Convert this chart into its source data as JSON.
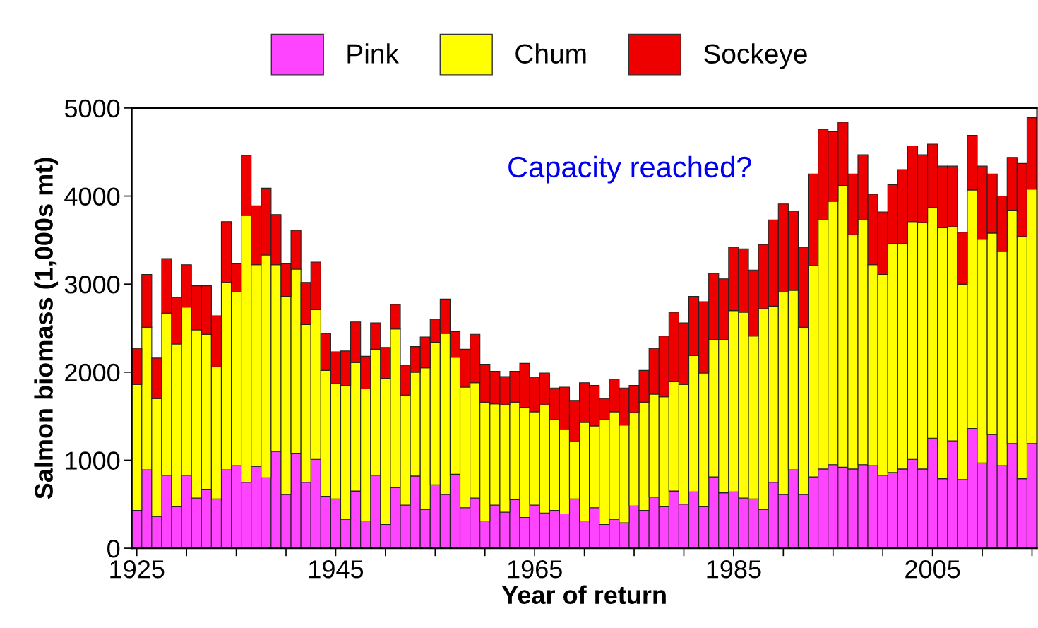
{
  "chart_data": {
    "type": "bar",
    "stacked": true,
    "xlabel": "Year of return",
    "ylabel": "Salmon biomass (1,000s mt)",
    "x": [
      1925,
      1926,
      1927,
      1928,
      1929,
      1930,
      1931,
      1932,
      1933,
      1934,
      1935,
      1936,
      1937,
      1938,
      1939,
      1940,
      1941,
      1942,
      1943,
      1944,
      1945,
      1946,
      1947,
      1948,
      1949,
      1950,
      1951,
      1952,
      1953,
      1954,
      1955,
      1956,
      1957,
      1958,
      1959,
      1960,
      1961,
      1962,
      1963,
      1964,
      1965,
      1966,
      1967,
      1968,
      1969,
      1970,
      1971,
      1972,
      1973,
      1974,
      1975,
      1976,
      1977,
      1978,
      1979,
      1980,
      1981,
      1982,
      1983,
      1984,
      1985,
      1986,
      1987,
      1988,
      1989,
      1990,
      1991,
      1992,
      1993,
      1994,
      1995,
      1996,
      1997,
      1998,
      1999,
      2000,
      2001,
      2002,
      2003,
      2004,
      2005,
      2006,
      2007,
      2008,
      2009,
      2010,
      2011,
      2012,
      2013,
      2014,
      2015
    ],
    "series": [
      {
        "name": "Pink",
        "color": "#ff44ff",
        "values": [
          430,
          890,
          360,
          830,
          470,
          830,
          570,
          670,
          560,
          890,
          940,
          750,
          930,
          800,
          1100,
          610,
          1080,
          750,
          1010,
          590,
          560,
          330,
          650,
          310,
          830,
          270,
          690,
          490,
          820,
          440,
          720,
          610,
          840,
          460,
          570,
          310,
          490,
          410,
          550,
          350,
          490,
          400,
          430,
          390,
          560,
          310,
          460,
          270,
          330,
          290,
          480,
          430,
          580,
          470,
          650,
          500,
          640,
          470,
          810,
          630,
          640,
          570,
          560,
          440,
          750,
          610,
          890,
          610,
          810,
          900,
          950,
          920,
          900,
          950,
          940,
          830,
          860,
          900,
          1010,
          900,
          1250,
          790,
          1220,
          780,
          1360,
          970,
          1290,
          940,
          1190,
          790,
          1190
        ]
      },
      {
        "name": "Chum",
        "color": "#ffff00",
        "values": [
          1430,
          1620,
          1340,
          1840,
          1850,
          1910,
          1910,
          1760,
          1500,
          2130,
          1970,
          3030,
          2290,
          2530,
          2120,
          2250,
          2090,
          1790,
          1700,
          1430,
          1310,
          1520,
          1460,
          1500,
          1430,
          1660,
          1800,
          1250,
          1180,
          1610,
          1620,
          1830,
          1330,
          1370,
          1310,
          1350,
          1150,
          1220,
          1110,
          1250,
          1060,
          1230,
          1030,
          960,
          650,
          1120,
          930,
          1190,
          1220,
          1110,
          1060,
          1230,
          1170,
          1250,
          1240,
          1360,
          1550,
          1520,
          1560,
          1740,
          2060,
          2110,
          1850,
          2280,
          2000,
          2300,
          2040,
          1900,
          2400,
          2830,
          2990,
          3200,
          2660,
          2780,
          2280,
          2280,
          2600,
          2560,
          2700,
          2800,
          2620,
          2850,
          2430,
          2220,
          2710,
          2540,
          2290,
          2430,
          2650,
          2750,
          2890
        ]
      },
      {
        "name": "Sockeye",
        "color": "#ee0000",
        "values": [
          410,
          600,
          460,
          620,
          530,
          480,
          500,
          550,
          580,
          690,
          320,
          680,
          670,
          760,
          570,
          370,
          440,
          480,
          540,
          420,
          360,
          390,
          460,
          370,
          300,
          350,
          280,
          340,
          290,
          350,
          260,
          390,
          290,
          430,
          550,
          430,
          370,
          320,
          350,
          500,
          390,
          360,
          360,
          480,
          470,
          450,
          460,
          240,
          370,
          420,
          310,
          360,
          520,
          690,
          790,
          700,
          670,
          810,
          750,
          690,
          720,
          720,
          750,
          730,
          980,
          1000,
          900,
          910,
          1040,
          1030,
          790,
          720,
          690,
          740,
          800,
          710,
          670,
          840,
          860,
          770,
          720,
          700,
          690,
          590,
          620,
          830,
          670,
          630,
          600,
          830,
          810
        ]
      }
    ],
    "xlim": [
      1924.5,
      2015.5
    ],
    "xticks": [
      1925,
      {
        "value": 1930,
        "label": null
      },
      {
        "value": 1935,
        "label": null
      },
      {
        "value": 1940,
        "label": null
      },
      1945,
      {
        "value": 1950,
        "label": null
      },
      {
        "value": 1955,
        "label": null
      },
      {
        "value": 1960,
        "label": null
      },
      1965,
      {
        "value": 1970,
        "label": null
      },
      {
        "value": 1975,
        "label": null
      },
      {
        "value": 1980,
        "label": null
      },
      1985,
      {
        "value": 1990,
        "label": null
      },
      {
        "value": 1995,
        "label": null
      },
      {
        "value": 2000,
        "label": null
      },
      2005,
      {
        "value": 2010,
        "label": null
      },
      {
        "value": 2015,
        "label": null
      }
    ],
    "ylim": [
      0,
      5000
    ],
    "yticks": [
      0,
      1000,
      2000,
      3000,
      4000,
      5000
    ],
    "annotations": [
      "Capacity reached?"
    ],
    "legend": "top",
    "grid": false
  }
}
